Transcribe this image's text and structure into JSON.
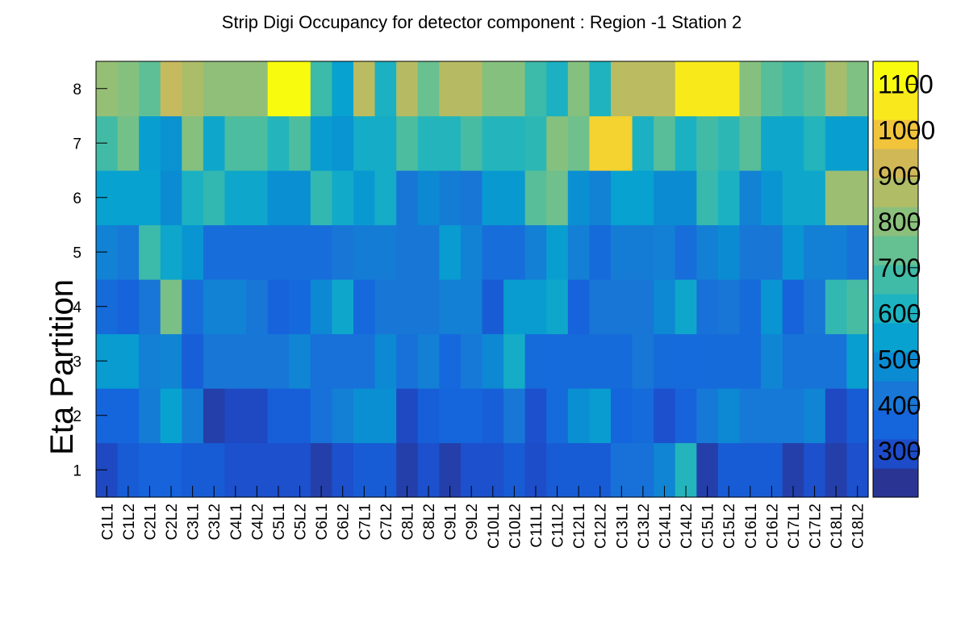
{
  "chart_data": {
    "type": "heatmap",
    "title": "Strip Digi Occupancy for detector component : Region -1 Station 2",
    "xlabel": "",
    "ylabel": "Eta Partition",
    "x_categories": [
      "C1L1",
      "C1L2",
      "C2L1",
      "C2L2",
      "C3L1",
      "C3L2",
      "C4L1",
      "C4L2",
      "C5L1",
      "C5L2",
      "C6L1",
      "C6L2",
      "C7L1",
      "C7L2",
      "C8L1",
      "C8L2",
      "C9L1",
      "C9L2",
      "C10L1",
      "C10L2",
      "C11L1",
      "C11L2",
      "C12L1",
      "C12L2",
      "C13L1",
      "C13L2",
      "C14L1",
      "C14L2",
      "C15L1",
      "C15L2",
      "C16L1",
      "C16L2",
      "C17L1",
      "C17L2",
      "C18L1",
      "C18L2"
    ],
    "y_categories": [
      "1",
      "2",
      "3",
      "4",
      "5",
      "6",
      "7",
      "8"
    ],
    "values": [
      [
        260,
        310,
        330,
        330,
        310,
        310,
        280,
        280,
        280,
        280,
        230,
        280,
        310,
        310,
        230,
        280,
        230,
        280,
        280,
        310,
        270,
        310,
        310,
        310,
        380,
        380,
        450,
        620,
        230,
        310,
        310,
        310,
        230,
        280,
        230,
        280
      ],
      [
        340,
        340,
        420,
        540,
        420,
        230,
        260,
        260,
        320,
        320,
        380,
        430,
        480,
        480,
        260,
        320,
        340,
        340,
        320,
        400,
        280,
        360,
        480,
        520,
        340,
        360,
        280,
        330,
        410,
        460,
        410,
        410,
        410,
        450,
        260,
        310
      ],
      [
        520,
        520,
        430,
        450,
        320,
        400,
        400,
        400,
        400,
        450,
        380,
        380,
        380,
        460,
        380,
        430,
        350,
        410,
        460,
        580,
        360,
        360,
        360,
        360,
        360,
        400,
        360,
        360,
        360,
        360,
        360,
        450,
        390,
        390,
        390,
        530
      ],
      [
        360,
        330,
        400,
        780,
        370,
        440,
        440,
        400,
        330,
        350,
        460,
        560,
        350,
        400,
        400,
        400,
        430,
        430,
        310,
        520,
        520,
        560,
        330,
        400,
        400,
        400,
        460,
        560,
        380,
        400,
        360,
        500,
        330,
        400,
        650,
        690
      ],
      [
        440,
        410,
        670,
        560,
        500,
        370,
        370,
        370,
        370,
        370,
        370,
        400,
        420,
        420,
        400,
        400,
        520,
        440,
        370,
        370,
        430,
        530,
        430,
        360,
        420,
        420,
        430,
        370,
        430,
        470,
        400,
        400,
        500,
        430,
        430,
        390
      ],
      [
        540,
        540,
        540,
        470,
        600,
        650,
        560,
        560,
        480,
        480,
        650,
        570,
        510,
        580,
        400,
        460,
        420,
        400,
        510,
        510,
        720,
        760,
        480,
        440,
        540,
        540,
        470,
        470,
        660,
        600,
        440,
        500,
        560,
        560,
        840,
        840
      ],
      [
        680,
        770,
        530,
        490,
        800,
        560,
        700,
        700,
        620,
        700,
        520,
        500,
        580,
        580,
        700,
        620,
        620,
        690,
        620,
        620,
        640,
        800,
        760,
        1040,
        1040,
        600,
        720,
        600,
        680,
        640,
        720,
        560,
        560,
        620,
        530,
        530
      ],
      [
        830,
        800,
        730,
        920,
        870,
        820,
        820,
        820,
        1150,
        1150,
        670,
        540,
        900,
        600,
        890,
        750,
        890,
        890,
        800,
        800,
        670,
        600,
        800,
        610,
        900,
        900,
        900,
        1090,
        1090,
        1090,
        800,
        720,
        680,
        720,
        860,
        790
      ]
    ],
    "zrange": [
      200,
      1150
    ],
    "z_ticks": [
      "300",
      "400",
      "500",
      "600",
      "700",
      "800",
      "900",
      "1000",
      "1100"
    ],
    "legend": "colorbar-right",
    "grid": false
  }
}
